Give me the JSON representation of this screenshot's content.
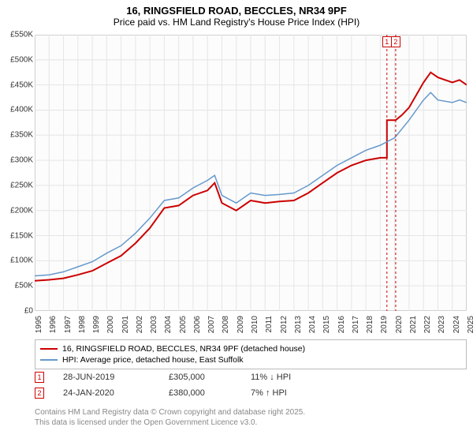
{
  "title": "16, RINGSFIELD ROAD, BECCLES, NR34 9PF",
  "subtitle": "Price paid vs. HM Land Registry's House Price Index (HPI)",
  "chart": {
    "type": "line",
    "bg_color": "#fcfcfc",
    "border_color": "#bbbbbb",
    "grid_color": "#e5e5e5",
    "ylim": [
      0,
      550000
    ],
    "ytick_step": 50000,
    "yticks": [
      "£0",
      "£50K",
      "£100K",
      "£150K",
      "£200K",
      "£250K",
      "£300K",
      "£350K",
      "£400K",
      "£450K",
      "£500K",
      "£550K"
    ],
    "xlim": [
      1995,
      2025
    ],
    "xticks": [
      1995,
      1996,
      1997,
      1998,
      1999,
      2000,
      2001,
      2002,
      2003,
      2004,
      2005,
      2006,
      2007,
      2008,
      2009,
      2010,
      2011,
      2012,
      2013,
      2014,
      2015,
      2016,
      2017,
      2018,
      2019,
      2020,
      2021,
      2022,
      2023,
      2024,
      2025
    ],
    "series": [
      {
        "name": "price_paid",
        "color": "#cc0000",
        "width": 2,
        "points": [
          [
            1995,
            60000
          ],
          [
            1996,
            62000
          ],
          [
            1997,
            65000
          ],
          [
            1998,
            72000
          ],
          [
            1999,
            80000
          ],
          [
            2000,
            95000
          ],
          [
            2001,
            110000
          ],
          [
            2002,
            135000
          ],
          [
            2003,
            165000
          ],
          [
            2004,
            205000
          ],
          [
            2005,
            210000
          ],
          [
            2006,
            230000
          ],
          [
            2007,
            240000
          ],
          [
            2007.5,
            255000
          ],
          [
            2008,
            215000
          ],
          [
            2009,
            200000
          ],
          [
            2010,
            220000
          ],
          [
            2011,
            215000
          ],
          [
            2012,
            218000
          ],
          [
            2013,
            220000
          ],
          [
            2014,
            235000
          ],
          [
            2015,
            255000
          ],
          [
            2016,
            275000
          ],
          [
            2017,
            290000
          ],
          [
            2018,
            300000
          ],
          [
            2019,
            305000
          ],
          [
            2019.46,
            305000
          ],
          [
            2019.46,
            380000
          ],
          [
            2020.07,
            380000
          ],
          [
            2020.5,
            390000
          ],
          [
            2021,
            405000
          ],
          [
            2022,
            455000
          ],
          [
            2022.5,
            475000
          ],
          [
            2023,
            465000
          ],
          [
            2024,
            455000
          ],
          [
            2024.5,
            460000
          ],
          [
            2025,
            450000
          ]
        ]
      },
      {
        "name": "hpi",
        "color": "#6699cc",
        "width": 1.5,
        "points": [
          [
            1995,
            70000
          ],
          [
            1996,
            72000
          ],
          [
            1997,
            78000
          ],
          [
            1998,
            88000
          ],
          [
            1999,
            98000
          ],
          [
            2000,
            115000
          ],
          [
            2001,
            130000
          ],
          [
            2002,
            155000
          ],
          [
            2003,
            185000
          ],
          [
            2004,
            220000
          ],
          [
            2005,
            225000
          ],
          [
            2006,
            245000
          ],
          [
            2007,
            260000
          ],
          [
            2007.5,
            270000
          ],
          [
            2008,
            230000
          ],
          [
            2009,
            215000
          ],
          [
            2010,
            235000
          ],
          [
            2011,
            230000
          ],
          [
            2012,
            232000
          ],
          [
            2013,
            235000
          ],
          [
            2014,
            250000
          ],
          [
            2015,
            270000
          ],
          [
            2016,
            290000
          ],
          [
            2017,
            305000
          ],
          [
            2018,
            320000
          ],
          [
            2019,
            330000
          ],
          [
            2020,
            345000
          ],
          [
            2021,
            380000
          ],
          [
            2022,
            420000
          ],
          [
            2022.5,
            435000
          ],
          [
            2023,
            420000
          ],
          [
            2024,
            415000
          ],
          [
            2024.5,
            420000
          ],
          [
            2025,
            415000
          ]
        ]
      }
    ],
    "markers": [
      {
        "label": "1",
        "x": 2019.46,
        "color": "#cc0000"
      },
      {
        "label": "2",
        "x": 2020.07,
        "color": "#cc0000"
      }
    ]
  },
  "legend": {
    "items": [
      {
        "color": "#cc0000",
        "label": "16, RINGSFIELD ROAD, BECCLES, NR34 9PF (detached house)"
      },
      {
        "color": "#6699cc",
        "label": "HPI: Average price, detached house, East Suffolk"
      }
    ]
  },
  "sales": [
    {
      "num": "1",
      "color": "#cc0000",
      "date": "28-JUN-2019",
      "price": "£305,000",
      "pct": "11% ↓ HPI"
    },
    {
      "num": "2",
      "color": "#cc0000",
      "date": "24-JAN-2020",
      "price": "£380,000",
      "pct": "7% ↑ HPI"
    }
  ],
  "footer": {
    "line1": "Contains HM Land Registry data © Crown copyright and database right 2025.",
    "line2": "This data is licensed under the Open Government Licence v3.0."
  }
}
